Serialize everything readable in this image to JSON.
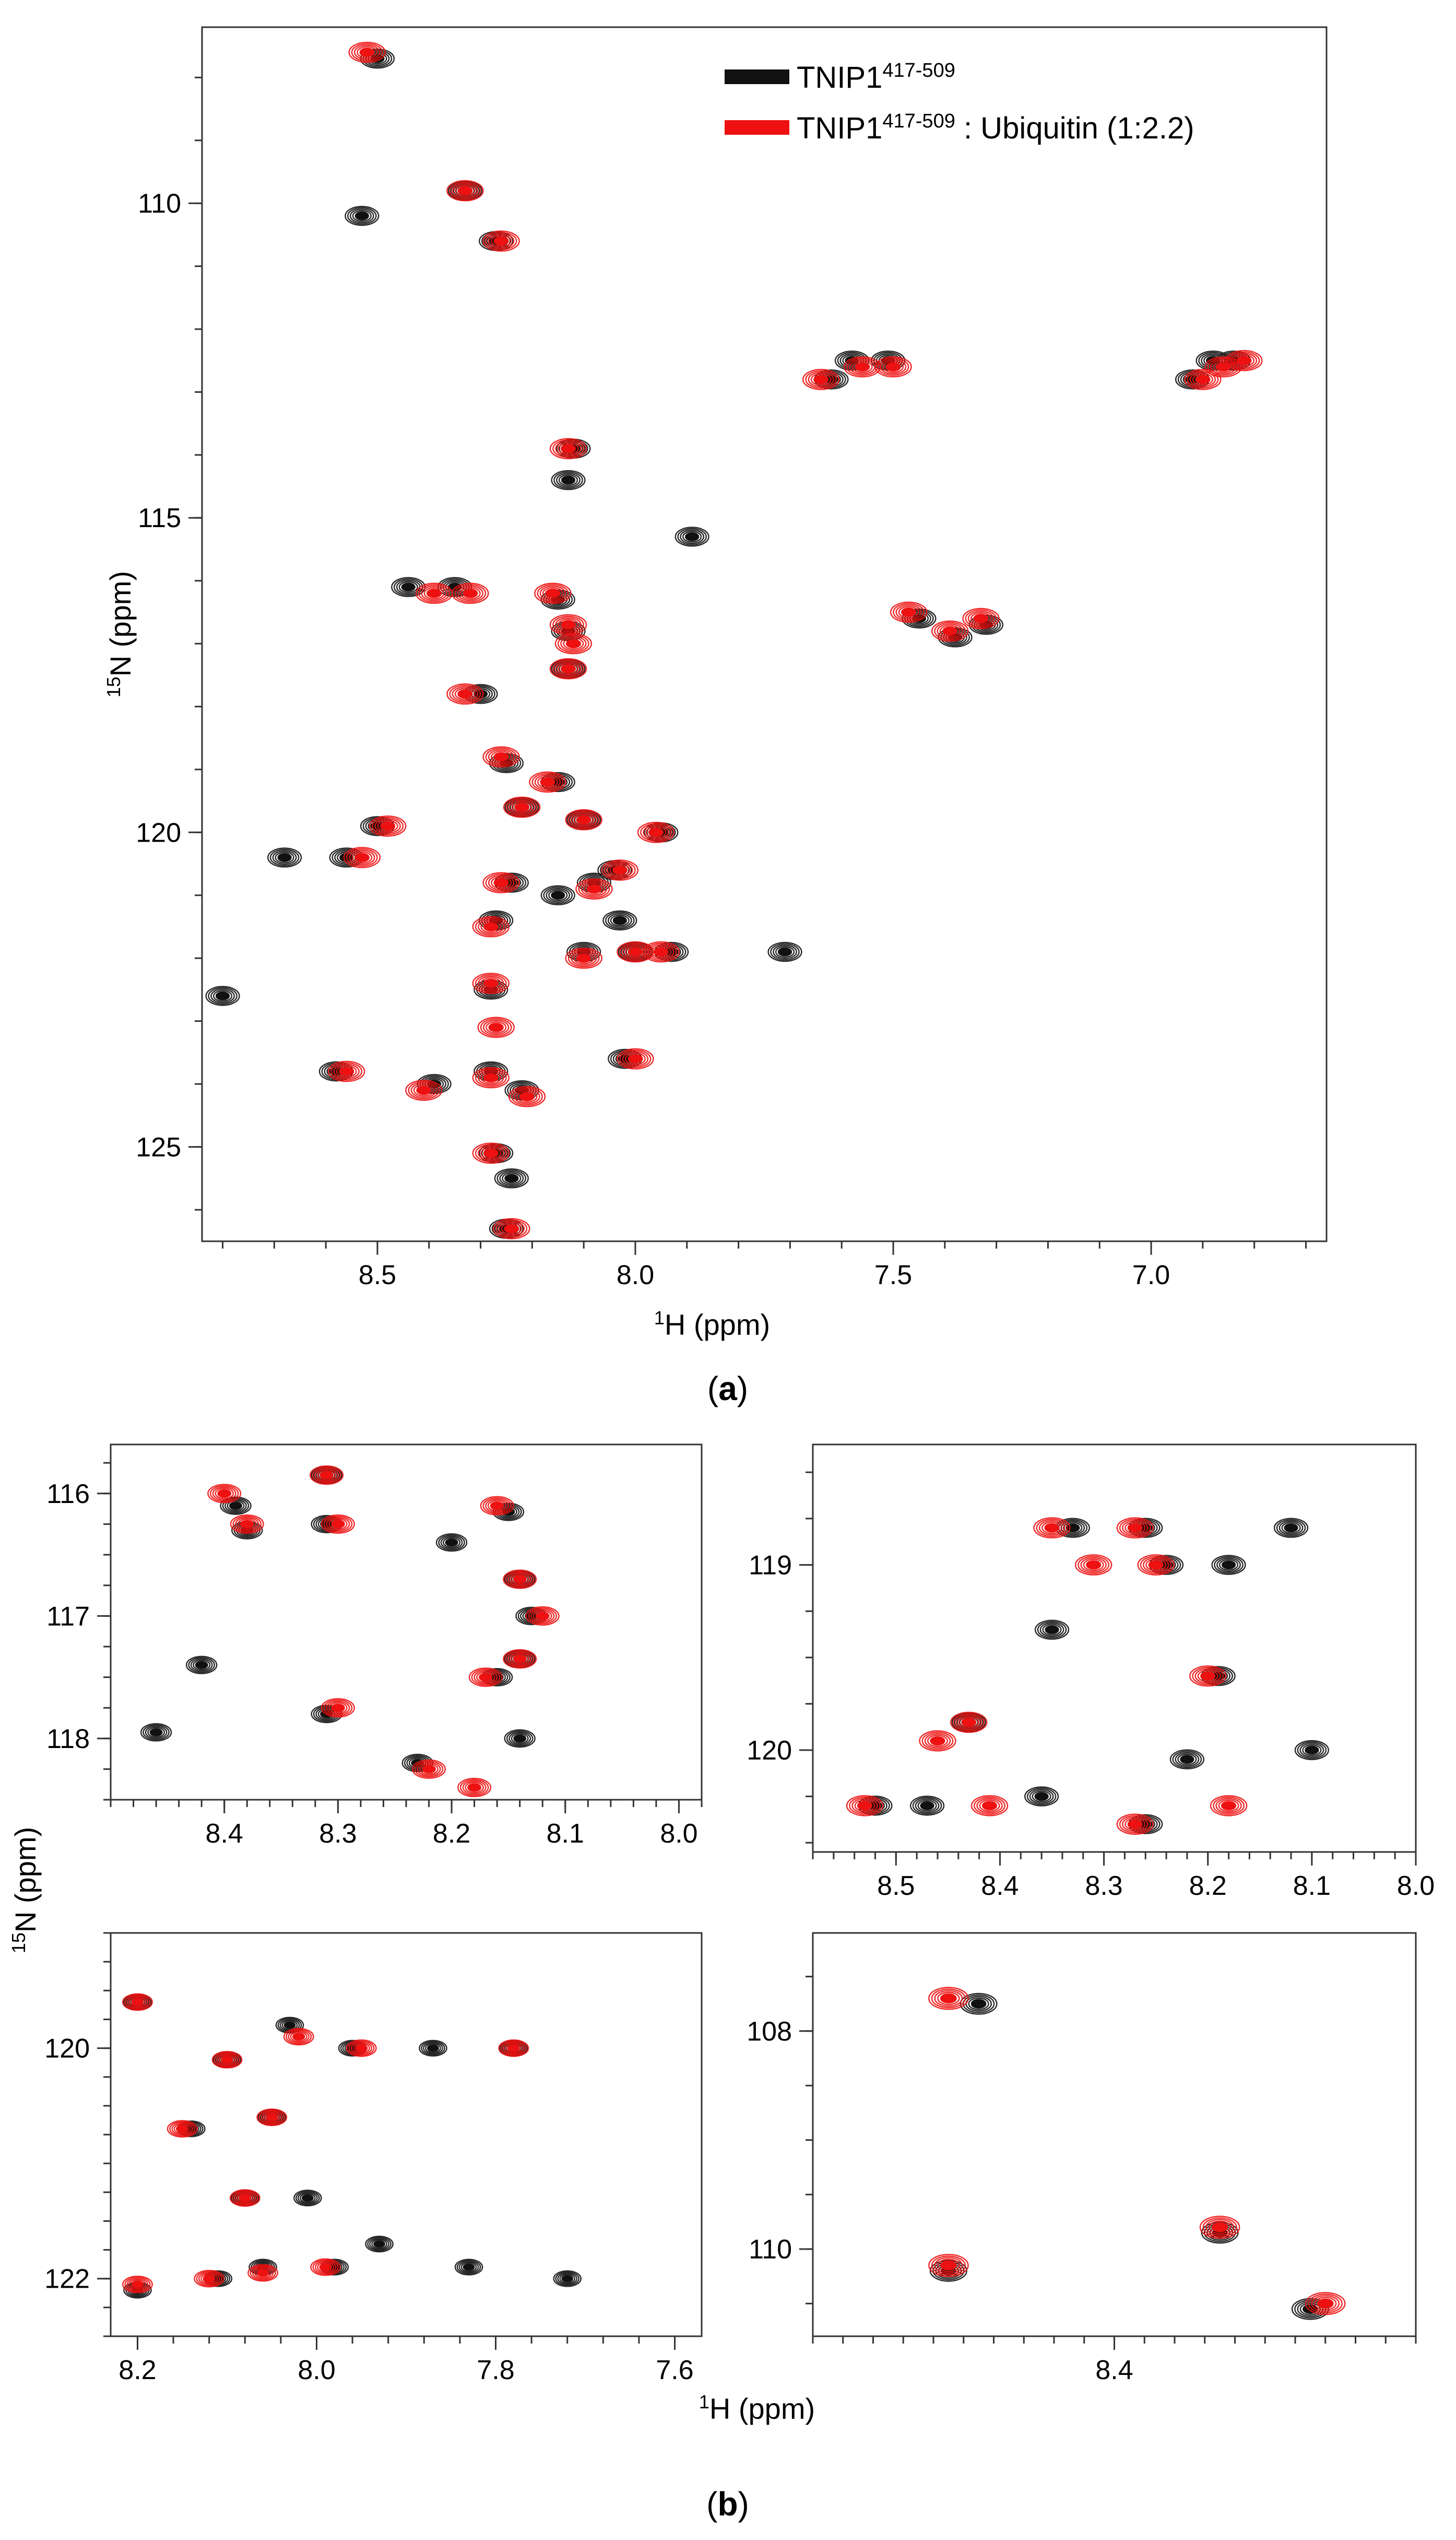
{
  "colors": {
    "free": "#111111",
    "bound": "#ee1111"
  },
  "legend": {
    "free": {
      "base": "TNIP1",
      "sup": "417-509",
      "rest": ""
    },
    "bound": {
      "base": "TNIP1",
      "sup": "417-509",
      "rest": " : Ubiquitin (1:2.2)"
    }
  },
  "captions": {
    "a": "a",
    "b": "b"
  },
  "shared_labels": {
    "n15_title": "N (ppm)",
    "n15_sup": "15",
    "h1_title": "H (ppm)",
    "h1_sup": "1"
  },
  "chart_data": [
    {
      "id": "a",
      "type": "nmr-hsqc-overlay",
      "title": "",
      "xlabel": "1H (ppm)",
      "ylabel": "15N (ppm)",
      "xlim": [
        8.84,
        6.66
      ],
      "ylim": [
        126.5,
        107.2
      ],
      "xticks": [
        8.5,
        8.0,
        7.5,
        7.0
      ],
      "xminor": 0.1,
      "yticks": [
        110,
        115,
        120,
        125
      ],
      "yminor": 1,
      "series": [
        {
          "name": "TNIP1 417-509",
          "color_key": "free",
          "peaks": [
            [
              8.5,
              107.7
            ],
            [
              8.53,
              110.2
            ],
            [
              8.33,
              109.8
            ],
            [
              8.27,
              110.6
            ],
            [
              8.12,
              113.9
            ],
            [
              8.13,
              114.4
            ],
            [
              7.89,
              115.3
            ],
            [
              8.44,
              116.1
            ],
            [
              8.35,
              116.1
            ],
            [
              8.15,
              116.3
            ],
            [
              8.13,
              116.8
            ],
            [
              8.13,
              117.4
            ],
            [
              8.3,
              117.8
            ],
            [
              8.25,
              118.9
            ],
            [
              8.15,
              119.2
            ],
            [
              8.22,
              119.6
            ],
            [
              8.5,
              119.9
            ],
            [
              8.1,
              119.8
            ],
            [
              7.95,
              120.0
            ],
            [
              8.56,
              120.4
            ],
            [
              8.68,
              120.4
            ],
            [
              8.24,
              120.8
            ],
            [
              8.08,
              120.8
            ],
            [
              8.04,
              120.6
            ],
            [
              8.15,
              121.0
            ],
            [
              8.27,
              121.4
            ],
            [
              8.03,
              121.4
            ],
            [
              8.1,
              121.9
            ],
            [
              8.0,
              121.9
            ],
            [
              7.93,
              121.9
            ],
            [
              7.71,
              121.9
            ],
            [
              8.28,
              122.5
            ],
            [
              8.58,
              123.8
            ],
            [
              8.39,
              124.0
            ],
            [
              8.28,
              123.8
            ],
            [
              8.22,
              124.1
            ],
            [
              8.02,
              123.6
            ],
            [
              8.8,
              122.6
            ],
            [
              8.27,
              125.1
            ],
            [
              8.24,
              125.5
            ],
            [
              8.25,
              126.3
            ],
            [
              7.62,
              112.8
            ],
            [
              7.58,
              112.5
            ],
            [
              7.51,
              112.5
            ],
            [
              6.92,
              112.8
            ],
            [
              6.88,
              112.5
            ],
            [
              6.84,
              112.5
            ],
            [
              7.45,
              116.6
            ],
            [
              7.38,
              116.9
            ],
            [
              7.32,
              116.7
            ]
          ]
        },
        {
          "name": "TNIP1 417-509 : Ubiquitin (1:2.2)",
          "color_key": "bound",
          "peaks": [
            [
              8.52,
              107.6
            ],
            [
              8.33,
              109.8
            ],
            [
              8.26,
              110.6
            ],
            [
              8.13,
              113.9
            ],
            [
              8.39,
              116.2
            ],
            [
              8.32,
              116.2
            ],
            [
              8.16,
              116.2
            ],
            [
              8.13,
              116.7
            ],
            [
              8.12,
              117.0
            ],
            [
              8.13,
              117.4
            ],
            [
              8.33,
              117.8
            ],
            [
              8.26,
              118.8
            ],
            [
              8.17,
              119.2
            ],
            [
              8.22,
              119.6
            ],
            [
              8.48,
              119.9
            ],
            [
              8.1,
              119.8
            ],
            [
              7.96,
              120.0
            ],
            [
              8.53,
              120.4
            ],
            [
              8.26,
              120.8
            ],
            [
              8.08,
              120.9
            ],
            [
              8.03,
              120.6
            ],
            [
              8.28,
              121.5
            ],
            [
              8.1,
              122.0
            ],
            [
              8.0,
              121.9
            ],
            [
              7.95,
              121.9
            ],
            [
              8.28,
              122.4
            ],
            [
              8.56,
              123.8
            ],
            [
              8.41,
              124.1
            ],
            [
              8.28,
              123.9
            ],
            [
              8.21,
              124.2
            ],
            [
              8.0,
              123.6
            ],
            [
              8.27,
              123.1
            ],
            [
              8.28,
              125.1
            ],
            [
              8.24,
              126.3
            ],
            [
              7.64,
              112.8
            ],
            [
              7.56,
              112.6
            ],
            [
              7.5,
              112.6
            ],
            [
              6.9,
              112.8
            ],
            [
              6.86,
              112.6
            ],
            [
              6.82,
              112.5
            ],
            [
              7.47,
              116.5
            ],
            [
              7.39,
              116.8
            ],
            [
              7.33,
              116.6
            ]
          ]
        }
      ]
    },
    {
      "id": "b1",
      "type": "nmr-hsqc-overlay-zoom",
      "title": "",
      "xlabel": "",
      "ylabel": "15N (ppm)",
      "xlim": [
        8.5,
        7.98
      ],
      "ylim": [
        118.5,
        115.6
      ],
      "xticks": [
        8.4,
        8.3,
        8.2,
        8.1,
        8.0
      ],
      "xminor": 0.02,
      "yticks": [
        116,
        117,
        118
      ],
      "yminor": 0.25,
      "series": [
        {
          "name": "TNIP1 417-509",
          "color_key": "free",
          "peaks": [
            [
              8.39,
              116.1
            ],
            [
              8.38,
              116.3
            ],
            [
              8.31,
              115.85
            ],
            [
              8.31,
              116.25
            ],
            [
              8.15,
              116.15
            ],
            [
              8.2,
              116.4
            ],
            [
              8.14,
              116.7
            ],
            [
              8.13,
              117.0
            ],
            [
              8.14,
              117.35
            ],
            [
              8.31,
              117.8
            ],
            [
              8.16,
              117.5
            ],
            [
              8.23,
              118.2
            ],
            [
              8.14,
              118.0
            ],
            [
              8.46,
              117.95
            ],
            [
              8.42,
              117.4
            ]
          ]
        },
        {
          "name": "TNIP1 417-509 : Ubiquitin (1:2.2)",
          "color_key": "bound",
          "peaks": [
            [
              8.4,
              116.0
            ],
            [
              8.38,
              116.25
            ],
            [
              8.31,
              115.85
            ],
            [
              8.3,
              116.25
            ],
            [
              8.16,
              116.1
            ],
            [
              8.14,
              116.7
            ],
            [
              8.12,
              117.0
            ],
            [
              8.14,
              117.35
            ],
            [
              8.3,
              117.75
            ],
            [
              8.17,
              117.5
            ],
            [
              8.22,
              118.25
            ],
            [
              8.18,
              118.4
            ]
          ]
        }
      ]
    },
    {
      "id": "b2",
      "type": "nmr-hsqc-overlay-zoom",
      "title": "",
      "xlabel": "",
      "ylabel": "",
      "xlim": [
        8.58,
        8.0
      ],
      "ylim": [
        120.55,
        118.35
      ],
      "xticks": [
        8.5,
        8.4,
        8.3,
        8.2,
        8.1,
        8.0
      ],
      "xminor": 0.02,
      "yticks": [
        119,
        120
      ],
      "yminor": 0.25,
      "series": [
        {
          "name": "TNIP1 417-509",
          "color_key": "free",
          "peaks": [
            [
              8.26,
              118.8
            ],
            [
              8.24,
              119.0
            ],
            [
              8.33,
              118.8
            ],
            [
              8.12,
              118.8
            ],
            [
              8.18,
              119.0
            ],
            [
              8.35,
              119.35
            ],
            [
              8.19,
              119.6
            ],
            [
              8.43,
              119.85
            ],
            [
              8.52,
              120.3
            ],
            [
              8.47,
              120.3
            ],
            [
              8.36,
              120.25
            ],
            [
              8.26,
              120.4
            ],
            [
              8.1,
              120.0
            ],
            [
              8.22,
              120.05
            ]
          ]
        },
        {
          "name": "TNIP1 417-509 : Ubiquitin (1:2.2)",
          "color_key": "bound",
          "peaks": [
            [
              8.27,
              118.8
            ],
            [
              8.25,
              119.0
            ],
            [
              8.35,
              118.8
            ],
            [
              8.31,
              119.0
            ],
            [
              8.2,
              119.6
            ],
            [
              8.43,
              119.85
            ],
            [
              8.53,
              120.3
            ],
            [
              8.27,
              120.4
            ],
            [
              8.41,
              120.3
            ],
            [
              8.18,
              120.3
            ],
            [
              8.46,
              119.95
            ]
          ]
        }
      ]
    },
    {
      "id": "b3",
      "type": "nmr-hsqc-overlay-zoom",
      "title": "",
      "xlabel": "",
      "ylabel": "",
      "xlim": [
        8.23,
        7.57
      ],
      "ylim": [
        122.5,
        119.0
      ],
      "xticks": [
        8.2,
        8.0,
        7.8,
        7.6
      ],
      "xminor": 0.04,
      "yticks": [
        120,
        122
      ],
      "yminor": 0.25,
      "series": [
        {
          "name": "TNIP1 417-509",
          "color_key": "free",
          "peaks": [
            [
              8.2,
              119.6
            ],
            [
              8.1,
              120.1
            ],
            [
              8.05,
              120.6
            ],
            [
              8.03,
              119.8
            ],
            [
              7.96,
              120.0
            ],
            [
              7.87,
              120.0
            ],
            [
              7.78,
              120.0
            ],
            [
              8.14,
              120.7
            ],
            [
              8.08,
              121.3
            ],
            [
              8.01,
              121.3
            ],
            [
              8.11,
              122.0
            ],
            [
              8.06,
              121.9
            ],
            [
              7.98,
              121.9
            ],
            [
              7.93,
              121.7
            ],
            [
              7.72,
              122.0
            ],
            [
              7.83,
              121.9
            ],
            [
              8.2,
              122.1
            ]
          ]
        },
        {
          "name": "TNIP1 417-509 : Ubiquitin (1:2.2)",
          "color_key": "bound",
          "peaks": [
            [
              8.2,
              119.6
            ],
            [
              8.1,
              120.1
            ],
            [
              8.05,
              120.6
            ],
            [
              8.02,
              119.9
            ],
            [
              7.95,
              120.0
            ],
            [
              7.78,
              120.0
            ],
            [
              8.08,
              121.3
            ],
            [
              8.12,
              122.0
            ],
            [
              8.06,
              121.95
            ],
            [
              7.99,
              121.9
            ],
            [
              8.2,
              122.05
            ],
            [
              8.15,
              120.7
            ]
          ]
        }
      ]
    },
    {
      "id": "b4",
      "type": "nmr-hsqc-overlay-zoom",
      "title": "",
      "xlabel": "1H (ppm)",
      "ylabel": "",
      "xlim": [
        8.6,
        8.2
      ],
      "ylim": [
        110.8,
        107.1
      ],
      "xticks": [
        8.4
      ],
      "xminor": 0.02,
      "yticks": [
        108,
        110
      ],
      "yminor": 0.5,
      "series": [
        {
          "name": "TNIP1 417-509",
          "color_key": "free",
          "peaks": [
            [
              8.49,
              107.75
            ],
            [
              8.51,
              110.2
            ],
            [
              8.33,
              109.85
            ],
            [
              8.27,
              110.55
            ]
          ]
        },
        {
          "name": "TNIP1 417-509 : Ubiquitin (1:2.2)",
          "color_key": "bound",
          "peaks": [
            [
              8.51,
              107.7
            ],
            [
              8.33,
              109.8
            ],
            [
              8.26,
              110.5
            ],
            [
              8.51,
              110.15
            ]
          ]
        }
      ]
    }
  ]
}
